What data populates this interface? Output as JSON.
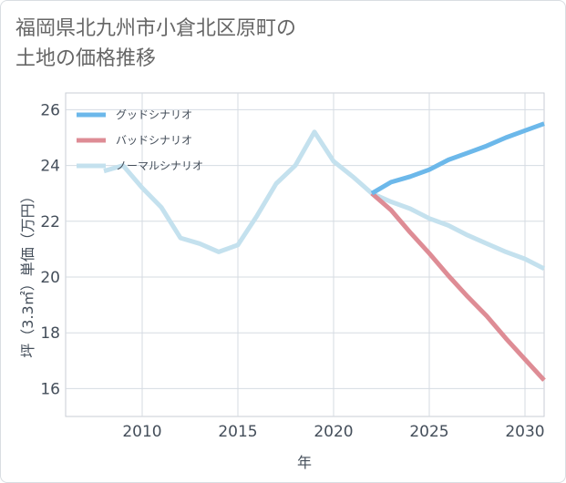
{
  "title": "福岡県北九州市小倉北区原町の\n土地の価格推移",
  "chart_data": {
    "type": "line",
    "title": "福岡県北九州市小倉北区原町の土地の価格推移",
    "xlabel": "年",
    "ylabel": "坪（3.3㎡）単価（万円）",
    "xlim": [
      2006,
      2031
    ],
    "ylim": [
      15,
      26.6
    ],
    "xticks": [
      2010,
      2015,
      2020,
      2025,
      2030
    ],
    "yticks": [
      16,
      18,
      20,
      22,
      24,
      26
    ],
    "grid": true,
    "legend_position": "top-left",
    "series": [
      {
        "name": "グッドシナリオ",
        "color": "#6cb8ea",
        "x": [
          2022,
          2023,
          2024,
          2025,
          2026,
          2027,
          2028,
          2029,
          2030,
          2031
        ],
        "y": [
          23.0,
          23.4,
          23.6,
          23.85,
          24.2,
          24.45,
          24.7,
          25.0,
          25.25,
          25.5
        ]
      },
      {
        "name": "バッドシナリオ",
        "color": "#de8c95",
        "x": [
          2022,
          2023,
          2024,
          2025,
          2026,
          2027,
          2028,
          2029,
          2030,
          2031
        ],
        "y": [
          23.0,
          22.4,
          21.6,
          20.85,
          20.05,
          19.3,
          18.6,
          17.8,
          17.05,
          16.3
        ]
      },
      {
        "name": "ノーマルシナリオ",
        "color": "#c4e1ee",
        "x": [
          2008,
          2009,
          2010,
          2011,
          2012,
          2013,
          2014,
          2015,
          2016,
          2017,
          2018,
          2019,
          2020,
          2021,
          2022,
          2023,
          2024,
          2025,
          2026,
          2027,
          2028,
          2029,
          2030,
          2031
        ],
        "y": [
          23.8,
          24.0,
          23.2,
          22.5,
          21.4,
          21.2,
          20.9,
          21.15,
          22.2,
          23.35,
          24.0,
          25.2,
          24.15,
          23.6,
          23.0,
          22.7,
          22.45,
          22.1,
          21.85,
          21.5,
          21.2,
          20.9,
          20.65,
          20.3
        ]
      }
    ]
  }
}
